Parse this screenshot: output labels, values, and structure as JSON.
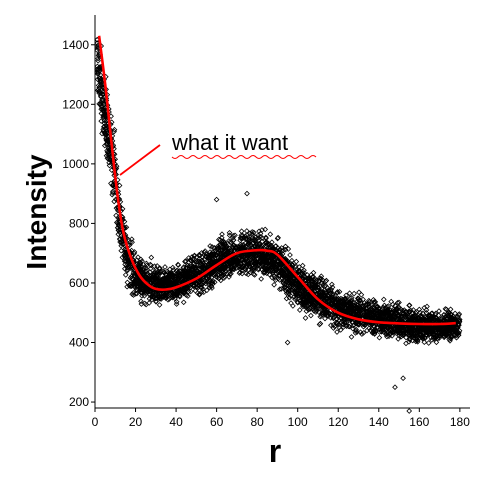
{
  "chart_data": {
    "type": "scatter",
    "xlabel": "r",
    "ylabel": "Intensity",
    "xlim": [
      0,
      185
    ],
    "ylim": [
      180,
      1500
    ],
    "x_ticks": [
      0,
      20,
      40,
      60,
      80,
      100,
      120,
      140,
      160,
      180
    ],
    "y_ticks": [
      200,
      400,
      600,
      800,
      1000,
      1200,
      1400
    ],
    "annotation": "what it want",
    "fit_curve": {
      "color": "#ff0000",
      "x": [
        2,
        5,
        8,
        11,
        14,
        18,
        22,
        26,
        30,
        35,
        40,
        50,
        60,
        70,
        80,
        85,
        90,
        100,
        110,
        120,
        130,
        140,
        150,
        160,
        170,
        178
      ],
      "y": [
        1430,
        1270,
        1080,
        900,
        770,
        680,
        625,
        595,
        580,
        578,
        585,
        615,
        660,
        700,
        710,
        708,
        695,
        620,
        545,
        500,
        478,
        468,
        464,
        462,
        462,
        465
      ]
    },
    "scatter_band": {
      "color": "#000000",
      "x": [
        1,
        3,
        6,
        9,
        12,
        15,
        20,
        25,
        30,
        40,
        50,
        60,
        70,
        80,
        90,
        100,
        110,
        120,
        130,
        140,
        150,
        160,
        170,
        180
      ],
      "upper": [
        1500,
        1420,
        1300,
        1180,
        1000,
        830,
        730,
        700,
        680,
        680,
        720,
        770,
        800,
        810,
        770,
        690,
        650,
        610,
        580,
        570,
        550,
        530,
        530,
        520
      ],
      "lower": [
        1200,
        1100,
        950,
        780,
        650,
        560,
        520,
        500,
        500,
        510,
        530,
        560,
        590,
        600,
        570,
        490,
        450,
        420,
        410,
        400,
        390,
        380,
        380,
        390
      ]
    },
    "outliers": [
      [
        155,
        170
      ],
      [
        152,
        280
      ],
      [
        148,
        250
      ],
      [
        95,
        400
      ],
      [
        60,
        880
      ],
      [
        75,
        900
      ]
    ]
  }
}
